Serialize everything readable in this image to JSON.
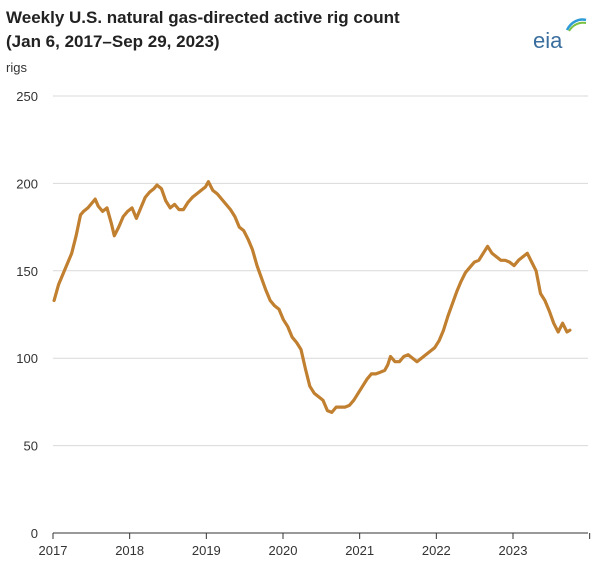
{
  "title_line1": "Weekly U.S. natural gas-directed active rig count",
  "title_line2": "(Jan 6, 2017–Sep 29, 2023)",
  "unit": "rigs",
  "logo": "eia",
  "colors": {
    "line": "#c17f30",
    "grid": "#d9d9d9",
    "axis": "#333333",
    "logo": "#3a6e9e"
  },
  "chart_data": {
    "type": "line",
    "title": "Weekly U.S. natural gas-directed active rig count",
    "subtitle": "(Jan 6, 2017–Sep 29, 2023)",
    "ylabel": "rigs",
    "xlabel": "",
    "ylim": [
      0,
      250
    ],
    "xlim": [
      "2017-01-01",
      "2023-12-31"
    ],
    "grid": "horizontal",
    "y_ticks": [
      "0",
      "50",
      "100",
      "150",
      "200",
      "250"
    ],
    "x_ticks": [
      "2017",
      "2018",
      "2019",
      "2020",
      "2021",
      "2022",
      "2023"
    ],
    "series": [
      {
        "name": "",
        "points": [
          [
            "2017-01-06",
            133
          ],
          [
            "2017-01-27",
            142
          ],
          [
            "2017-02-17",
            148
          ],
          [
            "2017-03-10",
            154
          ],
          [
            "2017-03-31",
            160
          ],
          [
            "2017-04-21",
            170
          ],
          [
            "2017-05-12",
            182
          ],
          [
            "2017-05-26",
            184
          ],
          [
            "2017-06-16",
            186
          ],
          [
            "2017-07-07",
            189
          ],
          [
            "2017-07-21",
            191
          ],
          [
            "2017-08-04",
            187
          ],
          [
            "2017-08-25",
            184
          ],
          [
            "2017-09-15",
            186
          ],
          [
            "2017-10-06",
            177
          ],
          [
            "2017-10-20",
            170
          ],
          [
            "2017-11-10",
            175
          ],
          [
            "2017-12-01",
            181
          ],
          [
            "2017-12-22",
            184
          ],
          [
            "2018-01-12",
            186
          ],
          [
            "2018-02-02",
            180
          ],
          [
            "2018-02-23",
            186
          ],
          [
            "2018-03-16",
            192
          ],
          [
            "2018-04-06",
            195
          ],
          [
            "2018-04-27",
            197
          ],
          [
            "2018-05-11",
            199
          ],
          [
            "2018-06-01",
            197
          ],
          [
            "2018-06-22",
            190
          ],
          [
            "2018-07-13",
            186
          ],
          [
            "2018-08-03",
            188
          ],
          [
            "2018-08-24",
            185
          ],
          [
            "2018-09-14",
            185
          ],
          [
            "2018-10-05",
            189
          ],
          [
            "2018-10-26",
            192
          ],
          [
            "2018-11-16",
            194
          ],
          [
            "2018-12-07",
            196
          ],
          [
            "2018-12-28",
            198
          ],
          [
            "2019-01-11",
            201
          ],
          [
            "2019-02-01",
            196
          ],
          [
            "2019-02-22",
            194
          ],
          [
            "2019-03-15",
            191
          ],
          [
            "2019-04-05",
            188
          ],
          [
            "2019-04-26",
            185
          ],
          [
            "2019-05-17",
            181
          ],
          [
            "2019-06-07",
            175
          ],
          [
            "2019-06-28",
            173
          ],
          [
            "2019-07-19",
            168
          ],
          [
            "2019-08-09",
            162
          ],
          [
            "2019-08-30",
            153
          ],
          [
            "2019-09-20",
            146
          ],
          [
            "2019-10-11",
            139
          ],
          [
            "2019-11-01",
            133
          ],
          [
            "2019-11-22",
            130
          ],
          [
            "2019-12-13",
            128
          ],
          [
            "2020-01-03",
            122
          ],
          [
            "2020-01-24",
            118
          ],
          [
            "2020-02-14",
            112
          ],
          [
            "2020-03-06",
            109
          ],
          [
            "2020-03-27",
            105
          ],
          [
            "2020-04-17",
            94
          ],
          [
            "2020-05-08",
            84
          ],
          [
            "2020-05-29",
            80
          ],
          [
            "2020-06-19",
            78
          ],
          [
            "2020-07-10",
            76
          ],
          [
            "2020-07-31",
            70
          ],
          [
            "2020-08-21",
            69
          ],
          [
            "2020-09-11",
            72
          ],
          [
            "2020-10-02",
            72
          ],
          [
            "2020-10-23",
            72
          ],
          [
            "2020-11-13",
            73
          ],
          [
            "2020-12-04",
            76
          ],
          [
            "2020-12-25",
            80
          ],
          [
            "2021-01-15",
            84
          ],
          [
            "2021-02-05",
            88
          ],
          [
            "2021-02-26",
            91
          ],
          [
            "2021-03-19",
            91
          ],
          [
            "2021-04-09",
            92
          ],
          [
            "2021-04-30",
            93
          ],
          [
            "2021-05-14",
            96
          ],
          [
            "2021-05-28",
            101
          ],
          [
            "2021-06-18",
            98
          ],
          [
            "2021-07-09",
            98
          ],
          [
            "2021-07-30",
            101
          ],
          [
            "2021-08-20",
            102
          ],
          [
            "2021-09-10",
            100
          ],
          [
            "2021-10-01",
            98
          ],
          [
            "2021-10-22",
            100
          ],
          [
            "2021-11-12",
            102
          ],
          [
            "2021-12-03",
            104
          ],
          [
            "2021-12-24",
            106
          ],
          [
            "2022-01-14",
            110
          ],
          [
            "2022-02-04",
            116
          ],
          [
            "2022-02-25",
            124
          ],
          [
            "2022-03-18",
            131
          ],
          [
            "2022-04-08",
            138
          ],
          [
            "2022-04-29",
            144
          ],
          [
            "2022-05-20",
            149
          ],
          [
            "2022-06-10",
            152
          ],
          [
            "2022-07-01",
            155
          ],
          [
            "2022-07-22",
            156
          ],
          [
            "2022-08-12",
            160
          ],
          [
            "2022-09-02",
            164
          ],
          [
            "2022-09-23",
            160
          ],
          [
            "2022-10-14",
            158
          ],
          [
            "2022-11-04",
            156
          ],
          [
            "2022-11-25",
            156
          ],
          [
            "2022-12-16",
            155
          ],
          [
            "2023-01-06",
            153
          ],
          [
            "2023-01-27",
            156
          ],
          [
            "2023-02-17",
            158
          ],
          [
            "2023-03-10",
            160
          ],
          [
            "2023-03-31",
            155
          ],
          [
            "2023-04-21",
            150
          ],
          [
            "2023-05-12",
            137
          ],
          [
            "2023-06-02",
            133
          ],
          [
            "2023-06-23",
            127
          ],
          [
            "2023-07-14",
            120
          ],
          [
            "2023-08-04",
            115
          ],
          [
            "2023-08-25",
            120
          ],
          [
            "2023-09-15",
            115
          ],
          [
            "2023-09-29",
            116
          ]
        ]
      }
    ]
  }
}
